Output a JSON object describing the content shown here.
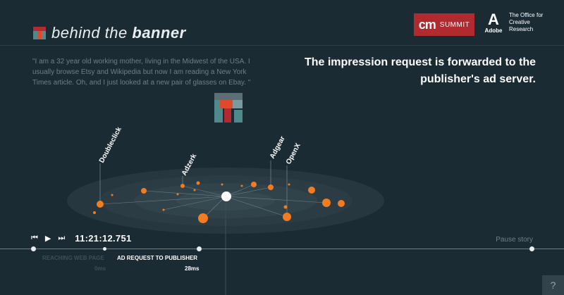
{
  "brand": {
    "title_light": "behind the ",
    "title_bold": "banner"
  },
  "sponsors": {
    "cm_logo": "cm",
    "cm_summit": "SUMMIT",
    "adobe_logo": "A",
    "adobe_name": "Adobe",
    "office": "The Office for Creative Research"
  },
  "quote": "\"I am a 32 year old working mother, living in the Midwest of the USA. I usually browse Etsy and Wikipedia but now I am reading a New York Times article. Oh, and I just looked at a new pair of glasses on Ebay. \"",
  "headline": "The impression request is forwarded to the publisher's ad server.",
  "nodes": [
    {
      "label": "Doubleclick"
    },
    {
      "label": "Adzerk"
    },
    {
      "label": "Adgear"
    },
    {
      "label": "OpenX"
    }
  ],
  "controls": {
    "rewind": "⏮",
    "play": "▶",
    "skip": "⏭",
    "time": "11:21:12.751",
    "pause": "Pause story"
  },
  "steps": [
    {
      "label": "REACHING WEB PAGE",
      "ms": "0ms"
    },
    {
      "label": "AD REQUEST TO PUBLISHER",
      "ms": "28ms"
    }
  ],
  "help": "?",
  "colors": {
    "background": "#1b2b33",
    "accent": "#f47c20",
    "muted": "#6d7f88",
    "red": "#b02a2f",
    "teal": "#4e8a8c"
  }
}
